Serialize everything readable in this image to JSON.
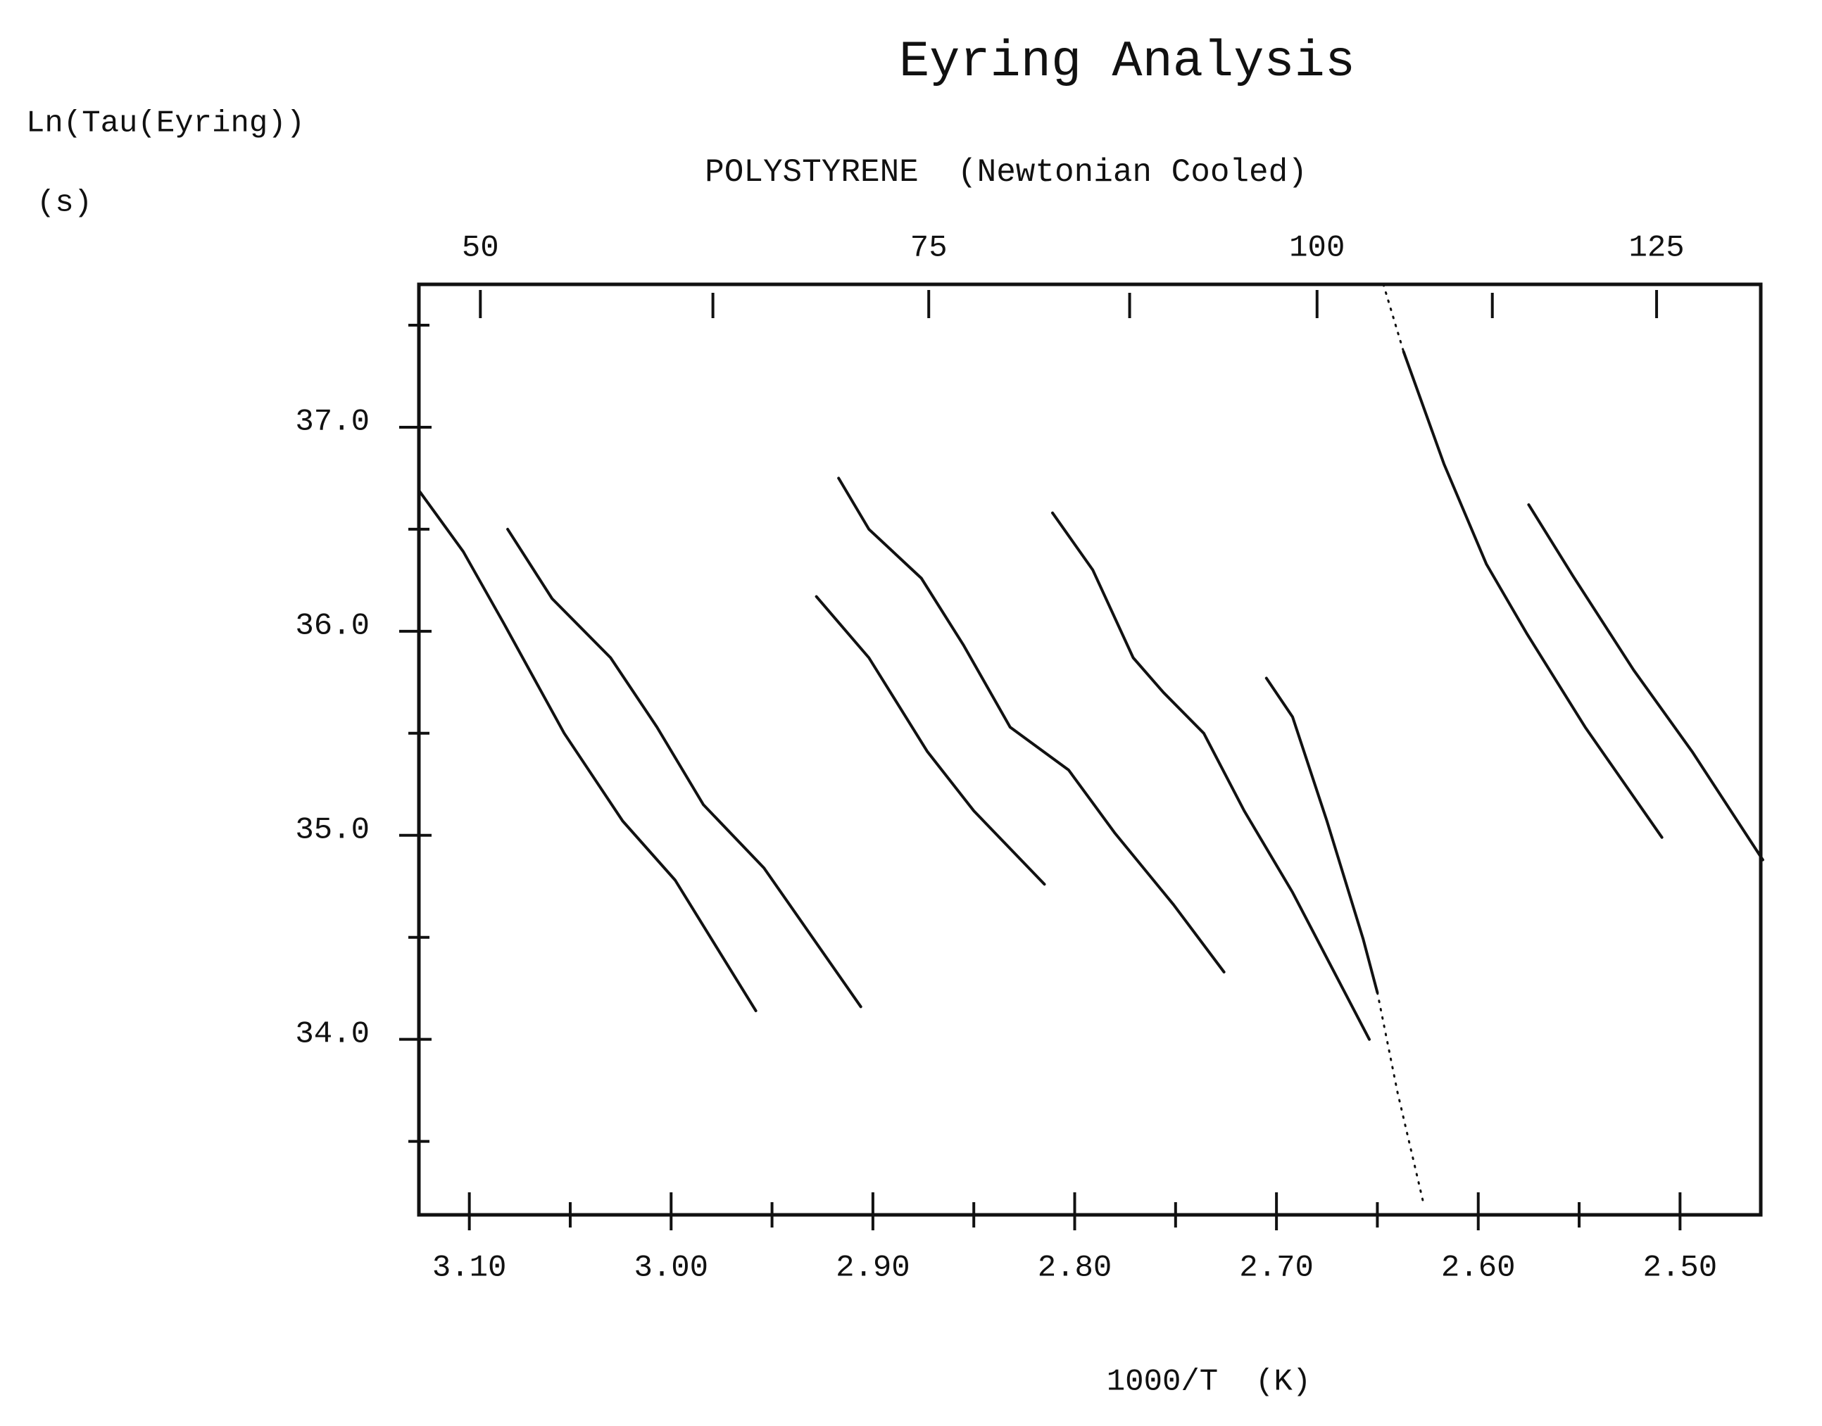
{
  "chart_data": {
    "type": "line",
    "title": "Eyring Analysis",
    "subtitle": "POLYSTYRENE  (Newtonian Cooled)",
    "y_label": "Ln(Tau(Eyring))",
    "y_unit": "(s)",
    "x_label": "1000/T  (K)",
    "xlim": [
      3.125,
      2.46
    ],
    "ylim": [
      33.14,
      37.7
    ],
    "xticks": [
      {
        "value": 3.1,
        "label": "3.10"
      },
      {
        "value": 3.0,
        "label": "3.00"
      },
      {
        "value": 2.9,
        "label": "2.90"
      },
      {
        "value": 2.8,
        "label": "2.80"
      },
      {
        "value": 2.7,
        "label": "2.70"
      },
      {
        "value": 2.6,
        "label": "2.60"
      },
      {
        "value": 2.5,
        "label": "2.50"
      }
    ],
    "xminorticks": [
      3.05,
      2.95,
      2.85,
      2.75,
      2.65,
      2.55
    ],
    "yticks": [
      {
        "value": 37,
        "label": "37.0"
      },
      {
        "value": 36,
        "label": "36.0"
      },
      {
        "value": 35,
        "label": "35.0"
      },
      {
        "value": 34,
        "label": "34.0"
      }
    ],
    "yminorticks": [
      37.5,
      36.5,
      35.5,
      34.5,
      33.5
    ],
    "x2ticks": [
      50,
      75,
      100,
      125
    ],
    "x2minorticks": [
      62.5,
      87.5,
      112.5
    ],
    "series": [
      {
        "color": "#111111",
        "x": [
          3.125,
          3.103,
          3.083,
          3.053,
          3.024,
          2.998,
          2.958
        ],
        "values": [
          36.69,
          36.39,
          36.04,
          35.5,
          35.07,
          34.78,
          34.14
        ]
      },
      {
        "color": "#111111",
        "x": [
          3.081,
          3.059,
          3.03,
          3.007,
          2.984,
          2.954,
          2.906
        ],
        "values": [
          36.5,
          36.16,
          35.87,
          35.53,
          35.15,
          34.84,
          34.16
        ]
      },
      {
        "color": "#111111",
        "x": [
          2.928,
          2.902,
          2.873,
          2.85,
          2.815
        ],
        "values": [
          36.17,
          35.87,
          35.41,
          35.12,
          34.76
        ]
      },
      {
        "color": "#111111",
        "x": [
          2.917,
          2.902,
          2.876,
          2.855,
          2.832,
          2.803,
          2.78,
          2.751,
          2.726
        ],
        "values": [
          36.75,
          36.5,
          36.26,
          35.93,
          35.53,
          35.32,
          35.01,
          34.66,
          34.33
        ]
      },
      {
        "color": "#111111",
        "x": [
          2.811,
          2.791,
          2.771,
          2.756,
          2.736,
          2.716,
          2.692,
          2.654
        ],
        "values": [
          36.58,
          36.3,
          35.87,
          35.7,
          35.5,
          35.12,
          34.72,
          34.0
        ]
      },
      {
        "color": "#111111",
        "x": [
          2.705,
          2.692,
          2.675,
          2.657,
          2.65
        ],
        "values": [
          35.77,
          35.58,
          35.07,
          34.49,
          34.23
        ]
      },
      {
        "color": "#111111",
        "style": "dotted",
        "x": [
          2.65,
          2.64,
          2.627
        ],
        "values": [
          34.23,
          33.74,
          33.19
        ]
      },
      {
        "color": "#111111",
        "style": "dotted",
        "x": [
          2.647,
          2.637
        ],
        "values": [
          37.7,
          37.37
        ]
      },
      {
        "color": "#111111",
        "x": [
          2.637,
          2.617,
          2.596,
          2.576,
          2.547,
          2.509
        ],
        "values": [
          37.37,
          36.82,
          36.33,
          35.99,
          35.53,
          34.99
        ]
      },
      {
        "color": "#111111",
        "x": [
          2.575,
          2.553,
          2.523,
          2.494,
          2.459
        ],
        "values": [
          36.62,
          36.27,
          35.81,
          35.41,
          34.88
        ]
      }
    ]
  }
}
